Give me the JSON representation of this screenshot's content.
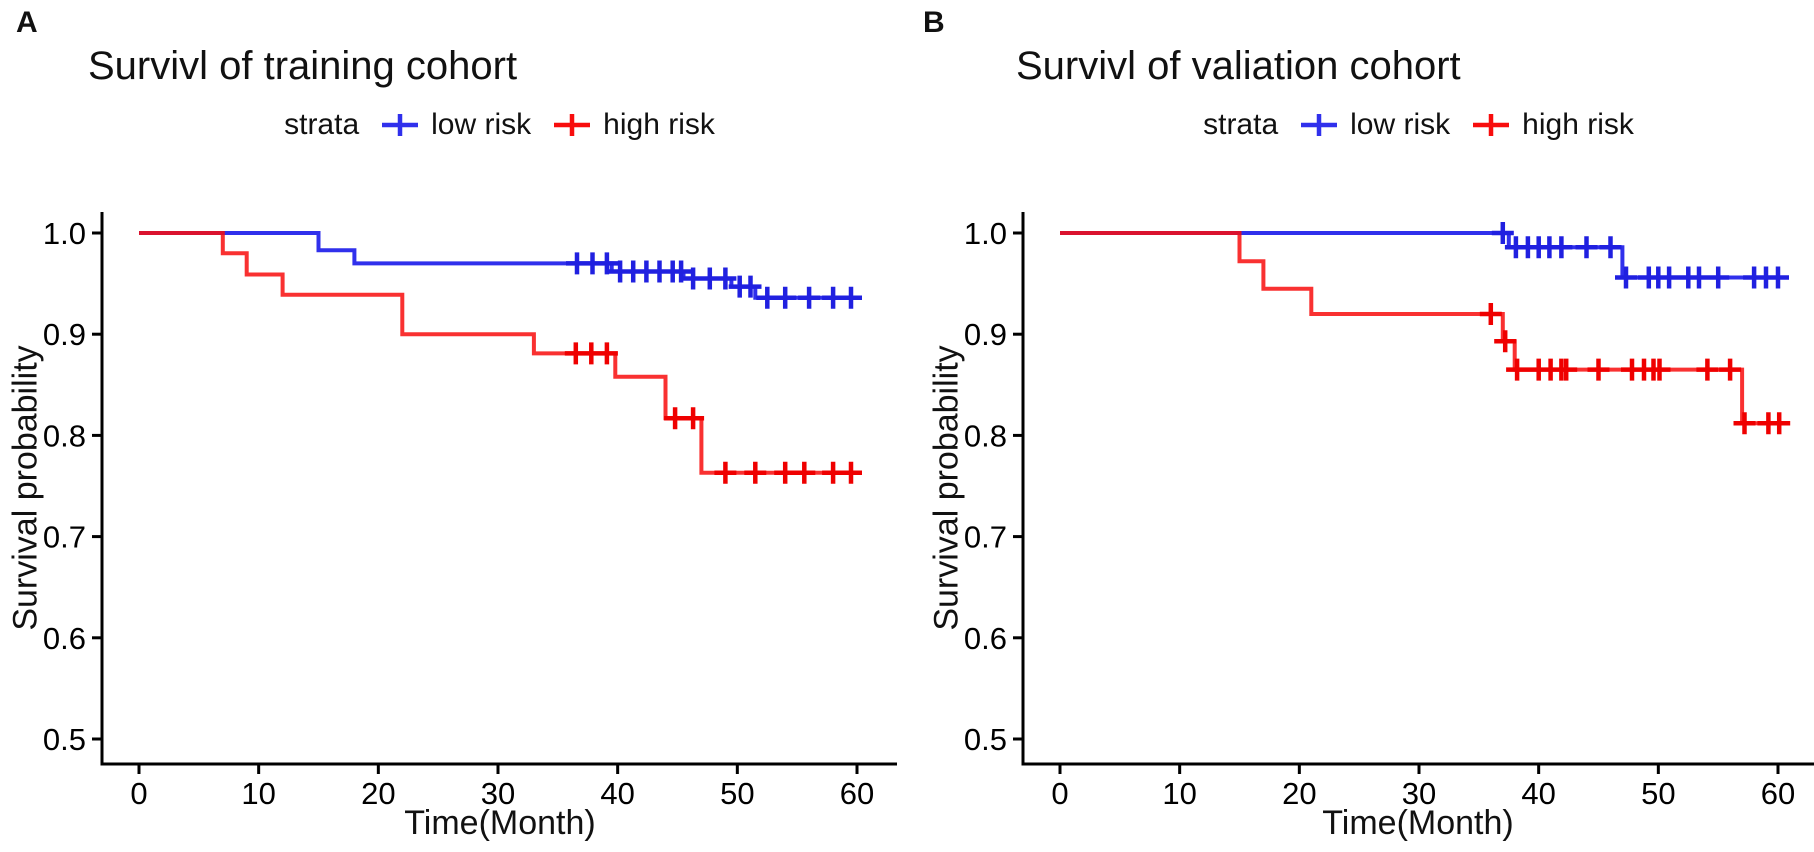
{
  "figure": {
    "panels": [
      {
        "letter": "A",
        "title": "Survivl of training cohort",
        "legend": {
          "title": "strata",
          "entries": [
            {
              "label": "low risk",
              "color": "#3030EC"
            },
            {
              "label": "high risk",
              "color": "#F80D0D"
            }
          ]
        },
        "xlabel": "Time(Month)",
        "ylabel": "Survival probability",
        "xticks": [
          0,
          10,
          20,
          30,
          40,
          50,
          60
        ],
        "yticks": [
          "1.0",
          "0.9",
          "0.8",
          "0.7",
          "0.6",
          "0.5"
        ]
      },
      {
        "letter": "B",
        "title": "Survivl of valiation cohort",
        "legend": {
          "title": "strata",
          "entries": [
            {
              "label": "low risk",
              "color": "#3030EC"
            },
            {
              "label": "high risk",
              "color": "#F80D0D"
            }
          ]
        },
        "xlabel": "Time(Month)",
        "ylabel": "Survival probability",
        "xticks": [
          0,
          10,
          20,
          30,
          40,
          50,
          60
        ],
        "yticks": [
          "1.0",
          "0.9",
          "0.8",
          "0.7",
          "0.6",
          "0.5"
        ]
      }
    ]
  },
  "chart_data": [
    {
      "type": "line",
      "subtype": "kaplan-meier-step",
      "panel": "A",
      "title": "Survivl of training cohort",
      "xlabel": "Time(Month)",
      "ylabel": "Survival probability",
      "xlim": [
        0,
        60
      ],
      "ylim": [
        0.5,
        1.0
      ],
      "grid": false,
      "legend_position": "top",
      "legend_title": "strata",
      "series": [
        {
          "name": "low risk",
          "color": "#3030EC",
          "censor_color": "#2020E0",
          "line_opacity": 1,
          "steps": [
            [
              0,
              1.0
            ],
            [
              15,
              1.0
            ],
            [
              15,
              0.983
            ],
            [
              18,
              0.983
            ],
            [
              18,
              0.97
            ],
            [
              39.5,
              0.97
            ],
            [
              39.5,
              0.962
            ],
            [
              45.5,
              0.962
            ],
            [
              45.5,
              0.955
            ],
            [
              49.5,
              0.955
            ],
            [
              49.5,
              0.947
            ],
            [
              51.5,
              0.947
            ],
            [
              51.5,
              0.936
            ],
            [
              60.3,
              0.936
            ]
          ],
          "censors": [
            [
              36.6,
              0.97
            ],
            [
              37.9,
              0.97
            ],
            [
              39.1,
              0.97
            ],
            [
              40.2,
              0.962
            ],
            [
              41.3,
              0.962
            ],
            [
              42.4,
              0.962
            ],
            [
              43.5,
              0.962
            ],
            [
              44.6,
              0.962
            ],
            [
              45.3,
              0.962
            ],
            [
              46.3,
              0.955
            ],
            [
              47.7,
              0.955
            ],
            [
              49.0,
              0.955
            ],
            [
              50.2,
              0.947
            ],
            [
              51.1,
              0.947
            ],
            [
              52.5,
              0.936
            ],
            [
              54.0,
              0.936
            ],
            [
              56.0,
              0.936
            ],
            [
              58.0,
              0.936
            ],
            [
              59.5,
              0.936
            ]
          ]
        },
        {
          "name": "high risk",
          "color": "#F80D0D",
          "censor_color": "#EF0000",
          "line_opacity": 0.85,
          "steps": [
            [
              0,
              1.0
            ],
            [
              7,
              1.0
            ],
            [
              7,
              0.98
            ],
            [
              9,
              0.98
            ],
            [
              9,
              0.959
            ],
            [
              12,
              0.959
            ],
            [
              12,
              0.939
            ],
            [
              22,
              0.939
            ],
            [
              22,
              0.9
            ],
            [
              33,
              0.9
            ],
            [
              33,
              0.881
            ],
            [
              39.8,
              0.881
            ],
            [
              39.8,
              0.858
            ],
            [
              44,
              0.858
            ],
            [
              44,
              0.817
            ],
            [
              47,
              0.817
            ],
            [
              47,
              0.763
            ],
            [
              60.3,
              0.763
            ]
          ],
          "censors": [
            [
              36.5,
              0.881
            ],
            [
              37.8,
              0.881
            ],
            [
              39.1,
              0.881
            ],
            [
              44.8,
              0.817
            ],
            [
              46.3,
              0.817
            ],
            [
              49.0,
              0.763
            ],
            [
              51.5,
              0.763
            ],
            [
              54.0,
              0.763
            ],
            [
              55.6,
              0.763
            ],
            [
              58.0,
              0.763
            ],
            [
              59.5,
              0.763
            ]
          ]
        }
      ]
    },
    {
      "type": "line",
      "subtype": "kaplan-meier-step",
      "panel": "B",
      "title": "Survivl of valiation cohort",
      "xlabel": "Time(Month)",
      "ylabel": "Survival probability",
      "xlim": [
        0,
        60
      ],
      "ylim": [
        0.5,
        1.0
      ],
      "grid": false,
      "legend_position": "top",
      "legend_title": "strata",
      "series": [
        {
          "name": "low risk",
          "color": "#3030EC",
          "censor_color": "#2020E0",
          "line_opacity": 1,
          "steps": [
            [
              0,
              1.0
            ],
            [
              37.5,
              1.0
            ],
            [
              37.5,
              0.986
            ],
            [
              47,
              0.986
            ],
            [
              47,
              0.956
            ],
            [
              60,
              0.956
            ]
          ],
          "censors": [
            [
              37,
              1.0
            ],
            [
              38.1,
              0.986
            ],
            [
              39.1,
              0.986
            ],
            [
              40.0,
              0.986
            ],
            [
              40.9,
              0.986
            ],
            [
              41.9,
              0.986
            ],
            [
              44.0,
              0.986
            ],
            [
              46.0,
              0.986
            ],
            [
              47.3,
              0.956
            ],
            [
              49.2,
              0.956
            ],
            [
              50.0,
              0.956
            ],
            [
              50.9,
              0.956
            ],
            [
              52.5,
              0.956
            ],
            [
              53.4,
              0.956
            ],
            [
              55.0,
              0.956
            ],
            [
              58.0,
              0.956
            ],
            [
              59.0,
              0.956
            ],
            [
              60.0,
              0.956
            ]
          ]
        },
        {
          "name": "high risk",
          "color": "#F80D0D",
          "censor_color": "#EF0000",
          "line_opacity": 0.85,
          "steps": [
            [
              0,
              1.0
            ],
            [
              15,
              1.0
            ],
            [
              15,
              0.972
            ],
            [
              17,
              0.972
            ],
            [
              17,
              0.945
            ],
            [
              21,
              0.945
            ],
            [
              21,
              0.92
            ],
            [
              37,
              0.92
            ],
            [
              37,
              0.893
            ],
            [
              38,
              0.893
            ],
            [
              38,
              0.865
            ],
            [
              57,
              0.865
            ],
            [
              57,
              0.812
            ],
            [
              60.5,
              0.812
            ]
          ],
          "censors": [
            [
              36.0,
              0.92
            ],
            [
              37.2,
              0.893
            ],
            [
              38.2,
              0.865
            ],
            [
              40.0,
              0.865
            ],
            [
              41.0,
              0.865
            ],
            [
              41.9,
              0.865
            ],
            [
              42.3,
              0.865
            ],
            [
              45.0,
              0.865
            ],
            [
              47.8,
              0.865
            ],
            [
              48.8,
              0.865
            ],
            [
              49.6,
              0.865
            ],
            [
              50.1,
              0.865
            ],
            [
              54.1,
              0.865
            ],
            [
              56.0,
              0.865
            ],
            [
              57.2,
              0.812
            ],
            [
              59.2,
              0.812
            ],
            [
              60.1,
              0.812
            ]
          ]
        }
      ]
    }
  ]
}
